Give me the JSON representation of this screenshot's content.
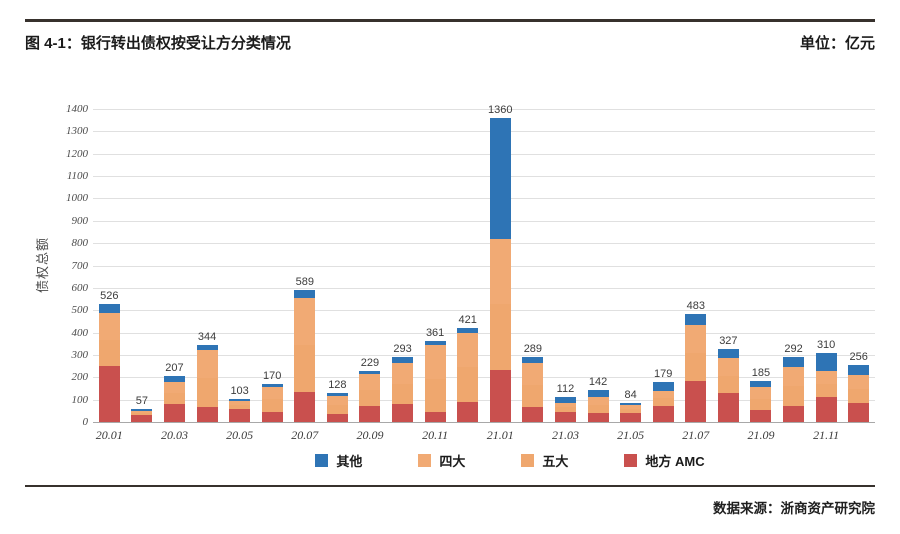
{
  "header": {
    "title": "图 4-1：银行转出债权按受让方分类情况",
    "unit": "单位：亿元"
  },
  "footer": {
    "source": "数据来源：浙商资产研究院"
  },
  "chart_data": {
    "type": "bar",
    "stacked": true,
    "title": "银行转出债权按受让方分类情况",
    "xlabel": "",
    "ylabel": "债权总额",
    "ylim": [
      0,
      1400
    ],
    "ytick_step": 100,
    "grid": true,
    "legend_position": "bottom",
    "categories": [
      "20.01",
      "20.02",
      "20.03",
      "20.04",
      "20.05",
      "20.06",
      "20.07",
      "20.08",
      "20.09",
      "20.10",
      "20.11",
      "20.12",
      "21.01",
      "21.02",
      "21.03",
      "21.04",
      "21.05",
      "21.06",
      "21.07",
      "21.08",
      "21.09",
      "21.10",
      "21.11",
      "21.12"
    ],
    "xtick_show_every": 2,
    "totals": [
      "526",
      "57",
      "207",
      "344",
      "103",
      "170",
      "589",
      "128",
      "229",
      "293",
      "361",
      "421",
      "1360",
      "289",
      "112",
      "142",
      "84",
      "179",
      "483",
      "327",
      "185",
      "292",
      "310",
      "256"
    ],
    "stack_order": [
      "地方 AMC",
      "五大",
      "四大",
      "其他"
    ],
    "series": [
      {
        "name": "其他",
        "color": "#2e74b5",
        "values": [
          40,
          9,
          27,
          20,
          9,
          15,
          34,
          13,
          16,
          31,
          18,
          25,
          540,
          24,
          26,
          29,
          8,
          40,
          49,
          42,
          30,
          47,
          81,
          44
        ]
      },
      {
        "name": "四大",
        "color": "#f1aa74",
        "values": [
          118,
          9,
          50,
          128,
          18,
          54,
          210,
          40,
          70,
          91,
          149,
          152,
          294,
          98,
          20,
          35,
          18,
          33,
          124,
          78,
          50,
          86,
          58,
          63
        ]
      },
      {
        "name": "五大",
        "color": "#efa76e",
        "values": [
          118,
          9,
          50,
          129,
          18,
          55,
          211,
          41,
          71,
          91,
          149,
          153,
          294,
          99,
          20,
          36,
          19,
          33,
          125,
          79,
          51,
          87,
          58,
          63
        ]
      },
      {
        "name": "地方 AMC",
        "color": "#c9504e",
        "values": [
          250,
          30,
          80,
          67,
          58,
          46,
          134,
          34,
          72,
          80,
          45,
          91,
          232,
          68,
          46,
          42,
          39,
          73,
          185,
          128,
          54,
          72,
          113,
          86
        ]
      }
    ]
  }
}
